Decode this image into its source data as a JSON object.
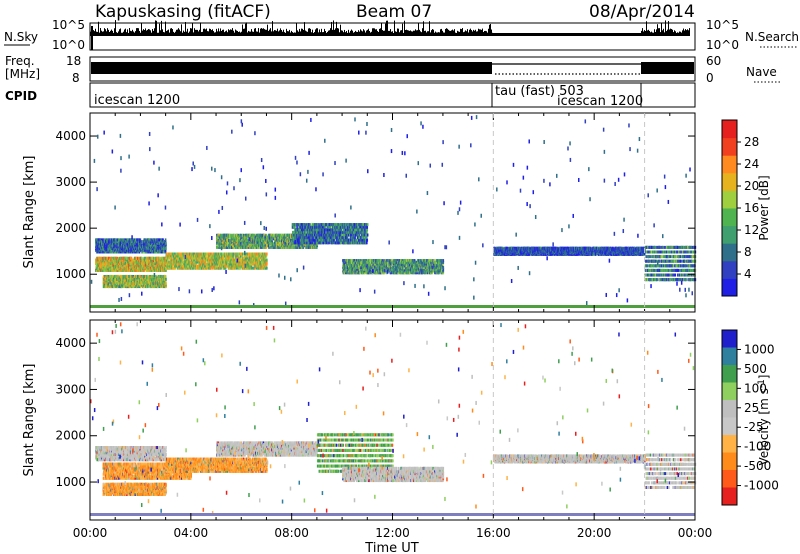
{
  "header": {
    "station": "Kapuskasing (fitACF)",
    "beam": "Beam 07",
    "date": "08/Apr/2014"
  },
  "summary": {
    "nsky_label": "N.Sky",
    "nsky_ticks": [
      "10^5",
      "10^0"
    ],
    "nsearch_label": "N.Search",
    "nsearch_ticks": [
      "10^5",
      "10^0"
    ],
    "freq_label": "Freq.",
    "freq_unit": "[MHz]",
    "freq_ticks": [
      "18",
      "8"
    ],
    "nave_label": "Nave",
    "nave_ticks": [
      "60",
      "0"
    ],
    "cpid_label": "CPID",
    "cpid_segments": [
      {
        "label": "icescan 1200",
        "start": "00:00",
        "end": "16:00"
      },
      {
        "label": "tau (fast) 503",
        "start": "16:00",
        "end": "22:00"
      },
      {
        "label": "icescan 1200",
        "start": "16:00",
        "end": "22:00"
      }
    ]
  },
  "colors": {
    "power_scale": [
      "#1f1fe6",
      "#3040c0",
      "#2f6f8a",
      "#3f9f6f",
      "#4fb34f",
      "#9fce3f",
      "#e6b31f",
      "#ff8a1f",
      "#f0401f",
      "#e61f1f"
    ],
    "velocity_scale": [
      "#1f1fcc",
      "#2f7f9f",
      "#3f9f4f",
      "#8fcf5f",
      "#bfbfbf",
      "#c8c8c8",
      "#ffb347",
      "#ff8c1a",
      "#ff5a1a",
      "#e61f1f"
    ]
  },
  "chart_data": [
    {
      "type": "heatmap",
      "panel": "power",
      "ylabel": "Slant Range [km]",
      "xlabel": "",
      "x_ticks": [
        "00:00",
        "04:00",
        "08:00",
        "12:00",
        "16:00",
        "20:00",
        "00:00"
      ],
      "xlim": [
        0,
        24
      ],
      "y_ticks": [
        "1000",
        "2000",
        "3000",
        "4000"
      ],
      "ylim": [
        180,
        4500
      ],
      "colorbar_label": "Power [dB]",
      "colorbar_ticks": [
        "28",
        "24",
        "20",
        "16",
        "12",
        "8",
        "4"
      ],
      "clim": [
        0,
        30
      ],
      "mode_changes_hours": [
        16,
        22
      ],
      "echo_regions": [
        {
          "t": [
            0.2,
            3
          ],
          "r": [
            1450,
            1750
          ],
          "level": 0.2
        },
        {
          "t": [
            0.2,
            3
          ],
          "r": [
            1050,
            1350
          ],
          "level": 0.6
        },
        {
          "t": [
            0.5,
            3
          ],
          "r": [
            700,
            950
          ],
          "level": 0.5
        },
        {
          "t": [
            3,
            7
          ],
          "r": [
            1100,
            1450
          ],
          "level": 0.55
        },
        {
          "t": [
            5,
            9
          ],
          "r": [
            1550,
            1850
          ],
          "level": 0.4
        },
        {
          "t": [
            8,
            11
          ],
          "r": [
            1650,
            2100
          ],
          "level": 0.25
        },
        {
          "t": [
            10,
            14
          ],
          "r": [
            1000,
            1300
          ],
          "level": 0.35
        },
        {
          "t": [
            16,
            22
          ],
          "r": [
            1400,
            1550
          ],
          "level": 0.15
        },
        {
          "t": [
            22,
            24
          ],
          "r": [
            850,
            1650
          ],
          "level": 0.3
        }
      ]
    },
    {
      "type": "heatmap",
      "panel": "velocity",
      "ylabel": "Slant Range [km]",
      "xlabel": "Time UT",
      "x_ticks": [
        "00:00",
        "04:00",
        "08:00",
        "12:00",
        "16:00",
        "20:00",
        "00:00"
      ],
      "xlim": [
        0,
        24
      ],
      "y_ticks": [
        "1000",
        "2000",
        "3000",
        "4000"
      ],
      "ylim": [
        180,
        4500
      ],
      "colorbar_label": "Velocity [m s",
      "colorbar_label_exp": "-1",
      "colorbar_ticks": [
        "1000",
        "500",
        "100",
        "25",
        "-25",
        "-100",
        "-500",
        "-1000"
      ],
      "clim": [
        -1000,
        1000
      ],
      "mode_changes_hours": [
        16,
        22
      ],
      "echo_regions": [
        {
          "t": [
            0.2,
            3
          ],
          "r": [
            1450,
            1750
          ],
          "vel": "gray"
        },
        {
          "t": [
            0.5,
            4
          ],
          "r": [
            1050,
            1400
          ],
          "vel": "orange"
        },
        {
          "t": [
            0.5,
            3
          ],
          "r": [
            700,
            950
          ],
          "vel": "orange"
        },
        {
          "t": [
            3,
            7
          ],
          "r": [
            1200,
            1500
          ],
          "vel": "orange"
        },
        {
          "t": [
            5,
            9
          ],
          "r": [
            1550,
            1850
          ],
          "vel": "gray"
        },
        {
          "t": [
            9,
            12
          ],
          "r": [
            1200,
            2100
          ],
          "vel": "green"
        },
        {
          "t": [
            10,
            14
          ],
          "r": [
            1000,
            1300
          ],
          "vel": "gray"
        },
        {
          "t": [
            16,
            22
          ],
          "r": [
            1400,
            1550
          ],
          "vel": "gray"
        },
        {
          "t": [
            22,
            24
          ],
          "r": [
            850,
            1650
          ],
          "vel": "gray"
        }
      ]
    }
  ]
}
